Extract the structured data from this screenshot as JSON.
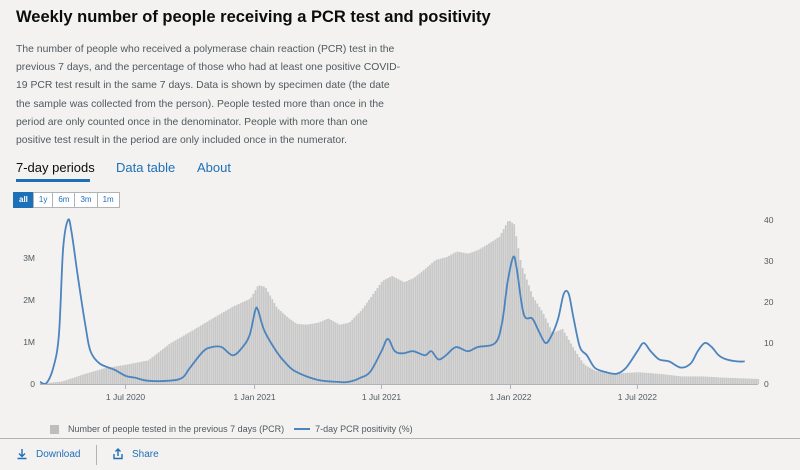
{
  "card": {
    "title": "Weekly number of people receiving a PCR test and positivity",
    "description": "The number of people who received a polymerase chain reaction (PCR) test in the previous 7 days, and the percentage of those who had at least one positive COVID-19 PCR test result in the same 7 days. Data is shown by specimen date (the date the sample was collected from the person). People tested more than once in the period are only counted once in the denominator. People with more than one positive test result in the period are only included once in the numerator."
  },
  "tabs": [
    {
      "label": "7-day periods",
      "active": true
    },
    {
      "label": "Data table",
      "active": false
    },
    {
      "label": "About",
      "active": false
    }
  ],
  "range_buttons": [
    {
      "label": "all",
      "selected": true
    },
    {
      "label": "1y",
      "selected": false
    },
    {
      "label": "6m",
      "selected": false
    },
    {
      "label": "3m",
      "selected": false
    },
    {
      "label": "1m",
      "selected": false
    }
  ],
  "footer": {
    "download_label": "Download",
    "share_label": "Share"
  },
  "colors": {
    "bars": "#c8c8c8",
    "line": "#4c84be",
    "link": "#1d70b8"
  },
  "icons": {
    "download": "download-icon",
    "share": "share-icon"
  },
  "chart_data": {
    "type": "bar",
    "title": "",
    "x_start": "2020-03-01",
    "x_end": "2022-12-20",
    "x_ticks": [
      {
        "date": "2020-07-01",
        "label": "1 Jul 2020"
      },
      {
        "date": "2021-01-01",
        "label": "1 Jan 2021"
      },
      {
        "date": "2021-07-01",
        "label": "1 Jul 2021"
      },
      {
        "date": "2022-01-01",
        "label": "1 Jan 2022"
      },
      {
        "date": "2022-07-01",
        "label": "1 Jul 2022"
      }
    ],
    "y_left": {
      "ticks": [
        {
          "value": 0,
          "label": "0"
        },
        {
          "value": 1000000,
          "label": "1M"
        },
        {
          "value": 2000000,
          "label": "2M"
        },
        {
          "value": 3000000,
          "label": "3M"
        }
      ],
      "ylim": [
        0,
        3900000
      ]
    },
    "y_right": {
      "ticks": [
        0,
        10,
        20,
        30,
        40
      ],
      "ylim": [
        0,
        40
      ]
    },
    "grid": false,
    "legend_position": "bottom-left",
    "series": [
      {
        "name": "Number of people tested in the previous 7 days (PCR)",
        "kind": "bar",
        "axis": "left",
        "points": [
          [
            "2020-03-01",
            10000
          ],
          [
            "2020-04-01",
            60000
          ],
          [
            "2020-05-01",
            230000
          ],
          [
            "2020-06-01",
            380000
          ],
          [
            "2020-07-01",
            460000
          ],
          [
            "2020-08-01",
            560000
          ],
          [
            "2020-09-01",
            960000
          ],
          [
            "2020-10-01",
            1250000
          ],
          [
            "2020-11-01",
            1560000
          ],
          [
            "2020-12-01",
            1850000
          ],
          [
            "2020-12-25",
            2030000
          ],
          [
            "2021-01-05",
            2350000
          ],
          [
            "2021-01-15",
            2310000
          ],
          [
            "2021-02-01",
            1810000
          ],
          [
            "2021-02-15",
            1600000
          ],
          [
            "2021-03-01",
            1430000
          ],
          [
            "2021-03-15",
            1410000
          ],
          [
            "2021-04-01",
            1460000
          ],
          [
            "2021-04-15",
            1560000
          ],
          [
            "2021-05-01",
            1410000
          ],
          [
            "2021-05-15",
            1460000
          ],
          [
            "2021-06-01",
            1750000
          ],
          [
            "2021-06-15",
            2070000
          ],
          [
            "2021-07-01",
            2450000
          ],
          [
            "2021-07-15",
            2570000
          ],
          [
            "2021-08-01",
            2420000
          ],
          [
            "2021-08-15",
            2520000
          ],
          [
            "2021-09-01",
            2750000
          ],
          [
            "2021-09-15",
            2950000
          ],
          [
            "2021-10-01",
            3020000
          ],
          [
            "2021-10-15",
            3150000
          ],
          [
            "2021-11-01",
            3100000
          ],
          [
            "2021-11-15",
            3190000
          ],
          [
            "2021-12-01",
            3350000
          ],
          [
            "2021-12-15",
            3500000
          ],
          [
            "2021-12-28",
            3900000
          ],
          [
            "2022-01-05",
            3800000
          ],
          [
            "2022-01-15",
            2850000
          ],
          [
            "2022-02-01",
            2070000
          ],
          [
            "2022-02-15",
            1700000
          ],
          [
            "2022-03-01",
            1210000
          ],
          [
            "2022-03-15",
            1310000
          ],
          [
            "2022-04-01",
            820000
          ],
          [
            "2022-04-15",
            460000
          ],
          [
            "2022-05-01",
            310000
          ],
          [
            "2022-06-01",
            250000
          ],
          [
            "2022-07-01",
            280000
          ],
          [
            "2022-08-01",
            240000
          ],
          [
            "2022-09-01",
            180000
          ],
          [
            "2022-10-01",
            180000
          ],
          [
            "2022-11-01",
            150000
          ],
          [
            "2022-12-20",
            120000
          ]
        ]
      },
      {
        "name": "7-day PCR positivity (%)",
        "kind": "line",
        "axis": "right",
        "points": [
          [
            "2020-03-01",
            0.5
          ],
          [
            "2020-03-10",
            0.2
          ],
          [
            "2020-03-20",
            4
          ],
          [
            "2020-03-28",
            12
          ],
          [
            "2020-04-03",
            33
          ],
          [
            "2020-04-10",
            40
          ],
          [
            "2020-04-15",
            37
          ],
          [
            "2020-04-25",
            25
          ],
          [
            "2020-05-05",
            14
          ],
          [
            "2020-05-12",
            8
          ],
          [
            "2020-05-25",
            5
          ],
          [
            "2020-06-15",
            3.5
          ],
          [
            "2020-07-01",
            2
          ],
          [
            "2020-07-15",
            1.5
          ],
          [
            "2020-08-01",
            0.8
          ],
          [
            "2020-09-01",
            0.8
          ],
          [
            "2020-09-20",
            1.5
          ],
          [
            "2020-10-01",
            4
          ],
          [
            "2020-10-20",
            8
          ],
          [
            "2020-11-01",
            9
          ],
          [
            "2020-11-15",
            9
          ],
          [
            "2020-12-01",
            7
          ],
          [
            "2020-12-15",
            9
          ],
          [
            "2020-12-25",
            12
          ],
          [
            "2021-01-02",
            18
          ],
          [
            "2021-01-06",
            18
          ],
          [
            "2021-01-15",
            13
          ],
          [
            "2021-02-01",
            8
          ],
          [
            "2021-02-15",
            5
          ],
          [
            "2021-03-01",
            3
          ],
          [
            "2021-04-01",
            1
          ],
          [
            "2021-05-01",
            0.5
          ],
          [
            "2021-05-15",
            0.5
          ],
          [
            "2021-06-01",
            1.5
          ],
          [
            "2021-06-15",
            3
          ],
          [
            "2021-07-01",
            8
          ],
          [
            "2021-07-10",
            11
          ],
          [
            "2021-07-20",
            8
          ],
          [
            "2021-08-01",
            7.5
          ],
          [
            "2021-08-15",
            8
          ],
          [
            "2021-09-01",
            7
          ],
          [
            "2021-09-10",
            8
          ],
          [
            "2021-09-20",
            6
          ],
          [
            "2021-10-01",
            7
          ],
          [
            "2021-10-15",
            9
          ],
          [
            "2021-11-01",
            8
          ],
          [
            "2021-11-15",
            9
          ],
          [
            "2021-12-10",
            10
          ],
          [
            "2021-12-20",
            15
          ],
          [
            "2021-12-28",
            25
          ],
          [
            "2022-01-05",
            31
          ],
          [
            "2022-01-10",
            28
          ],
          [
            "2022-01-20",
            17
          ],
          [
            "2022-02-01",
            16
          ],
          [
            "2022-02-10",
            13
          ],
          [
            "2022-02-20",
            10
          ],
          [
            "2022-03-01",
            12
          ],
          [
            "2022-03-10",
            16
          ],
          [
            "2022-03-18",
            22
          ],
          [
            "2022-03-25",
            22
          ],
          [
            "2022-04-01",
            16
          ],
          [
            "2022-04-10",
            9
          ],
          [
            "2022-04-20",
            7
          ],
          [
            "2022-05-01",
            4
          ],
          [
            "2022-05-15",
            3
          ],
          [
            "2022-06-01",
            2.5
          ],
          [
            "2022-06-15",
            4
          ],
          [
            "2022-07-01",
            8
          ],
          [
            "2022-07-10",
            10
          ],
          [
            "2022-07-20",
            8
          ],
          [
            "2022-08-01",
            6
          ],
          [
            "2022-08-15",
            5.5
          ],
          [
            "2022-09-01",
            4
          ],
          [
            "2022-09-15",
            5
          ],
          [
            "2022-09-25",
            8
          ],
          [
            "2022-10-05",
            10
          ],
          [
            "2022-10-15",
            9
          ],
          [
            "2022-10-25",
            7
          ],
          [
            "2022-11-05",
            6
          ],
          [
            "2022-11-20",
            5.5
          ],
          [
            "2022-12-01",
            5.5
          ]
        ]
      }
    ]
  }
}
